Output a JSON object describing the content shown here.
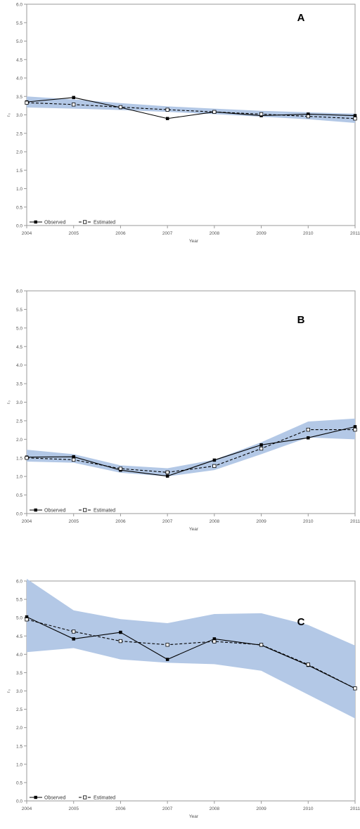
{
  "chart_data": [
    {
      "type": "line",
      "panel_letter": "A",
      "xlabel": "Year",
      "ylabel": "r₀",
      "x": [
        2004,
        2005,
        2006,
        2007,
        2008,
        2009,
        2010,
        2011
      ],
      "x_tick_labels": [
        "2004",
        "2005",
        "2006",
        "2007",
        "2008",
        "2009",
        "2010",
        "2011"
      ],
      "y_tick_labels": [
        "0.0",
        "0.5",
        "1.0",
        "1.5",
        "2.0",
        "2.5",
        "3.0",
        "3.5",
        "4.0",
        "4.5",
        "5.0",
        "5.5",
        "6.0"
      ],
      "ylim": [
        0,
        6
      ],
      "series": [
        {
          "name": "Observed",
          "style": "solid",
          "marker": "filled-square",
          "values": [
            3.35,
            3.47,
            3.2,
            2.9,
            3.08,
            2.98,
            3.02,
            2.98
          ]
        },
        {
          "name": "Estimated",
          "style": "dashed",
          "marker": "open-square",
          "values": [
            3.33,
            3.28,
            3.21,
            3.14,
            3.08,
            3.02,
            2.96,
            2.9
          ]
        }
      ],
      "band": {
        "lower": [
          3.2,
          3.17,
          3.13,
          3.08,
          3.02,
          2.95,
          2.88,
          2.78
        ],
        "upper": [
          3.5,
          3.42,
          3.32,
          3.23,
          3.17,
          3.11,
          3.07,
          3.03
        ]
      },
      "legend_position": "bottom-left",
      "grid": false
    },
    {
      "type": "line",
      "panel_letter": "B",
      "xlabel": "Year",
      "ylabel": "r₀",
      "x": [
        2004,
        2005,
        2006,
        2007,
        2008,
        2009,
        2010,
        2011
      ],
      "x_tick_labels": [
        "2004",
        "2005",
        "2006",
        "2007",
        "2008",
        "2009",
        "2010",
        "2011"
      ],
      "y_tick_labels": [
        "0.0",
        "0.5",
        "1.0",
        "1.5",
        "2.0",
        "2.5",
        "3.0",
        "3.5",
        "4.0",
        "4.5",
        "5.0",
        "5.5",
        "6.0"
      ],
      "ylim": [
        0,
        6
      ],
      "series": [
        {
          "name": "Observed",
          "style": "solid",
          "marker": "filled-square",
          "values": [
            1.52,
            1.53,
            1.17,
            1.01,
            1.44,
            1.85,
            2.04,
            2.34
          ]
        },
        {
          "name": "Estimated",
          "style": "dashed",
          "marker": "open-square",
          "values": [
            1.5,
            1.45,
            1.21,
            1.11,
            1.28,
            1.75,
            2.26,
            2.26
          ]
        }
      ],
      "band": {
        "lower": [
          1.4,
          1.37,
          1.1,
          1.0,
          1.17,
          1.6,
          2.05,
          2.0
        ],
        "upper": [
          1.72,
          1.6,
          1.3,
          1.22,
          1.45,
          1.92,
          2.48,
          2.56
        ]
      },
      "legend_position": "bottom-left",
      "grid": false
    },
    {
      "type": "line",
      "panel_letter": "C",
      "xlabel": "Year",
      "ylabel": "r₀",
      "x": [
        2004,
        2005,
        2006,
        2007,
        2008,
        2009,
        2010,
        2011
      ],
      "x_tick_labels": [
        "2004",
        "2005",
        "2006",
        "2007",
        "2008",
        "2009",
        "2010",
        "2011"
      ],
      "y_tick_labels": [
        "0.0",
        "0.5",
        "1.0",
        "1.5",
        "2.0",
        "2.5",
        "3.0",
        "3.5",
        "4.0",
        "4.5",
        "5.0",
        "5.5",
        "6.0"
      ],
      "ylim": [
        0,
        6
      ],
      "series": [
        {
          "name": "Observed",
          "style": "solid",
          "marker": "filled-square",
          "values": [
            5.02,
            4.42,
            4.6,
            3.86,
            4.42,
            4.25,
            3.7,
            3.07
          ]
        },
        {
          "name": "Estimated",
          "style": "dashed",
          "marker": "open-square",
          "values": [
            4.95,
            4.62,
            4.36,
            4.26,
            4.35,
            4.26,
            3.72,
            3.07
          ]
        }
      ],
      "band": {
        "lower": [
          4.06,
          4.17,
          3.86,
          3.77,
          3.73,
          3.55,
          2.9,
          2.25
        ],
        "upper": [
          6.06,
          5.2,
          4.96,
          4.85,
          5.1,
          5.12,
          4.8,
          4.24
        ]
      },
      "legend_position": "bottom-left",
      "grid": false
    }
  ],
  "colors": {
    "band": "#b3c8e6",
    "line": "#000000",
    "axis": "#9a9a9a",
    "text": "#555555"
  }
}
